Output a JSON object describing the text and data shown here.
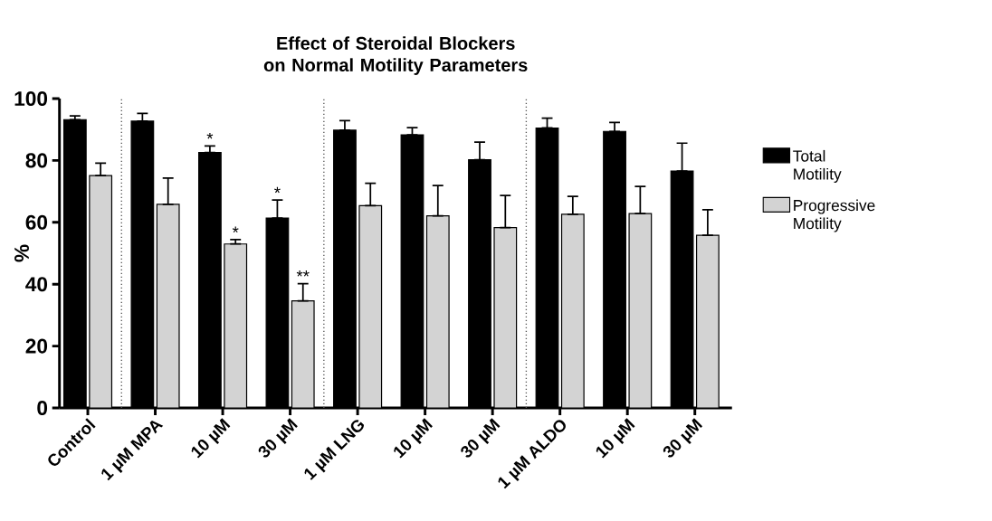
{
  "chart_data": {
    "type": "bar",
    "title": "Effect of Steroidal Blockers on Normal Motility Parameters",
    "ylabel": "%",
    "categories": [
      "Control",
      "1 µM MPA",
      "10 µM",
      "30 µM",
      "1 µM LNG",
      "10 µM",
      "30 µM",
      "1 µM ALDO",
      "10 µM",
      "30 µM"
    ],
    "series": [
      {
        "name": "Total Motility",
        "color": "#000000",
        "values": [
          93.2,
          92.7,
          82.6,
          61.4,
          89.8,
          88.3,
          80.2,
          90.5,
          89.4,
          76.6
        ],
        "errors": [
          [
            93.2,
            94.4
          ],
          [
            92.7,
            95.2
          ],
          [
            82.6,
            84.7
          ],
          [
            61.4,
            67.2
          ],
          [
            89.8,
            92.9
          ],
          [
            88.3,
            90.6
          ],
          [
            80.2,
            85.9
          ],
          [
            90.5,
            93.7
          ],
          [
            89.4,
            92.3
          ],
          [
            76.6,
            85.6
          ]
        ],
        "value_labels": [
          null,
          null,
          "*",
          "*",
          null,
          null,
          null,
          null,
          null,
          null
        ]
      },
      {
        "name": "Progressive Motility",
        "color": "#d3d3d3",
        "values": [
          75.1,
          65.8,
          53.0,
          34.6,
          65.4,
          62.1,
          58.3,
          62.6,
          62.8,
          55.8
        ],
        "errors": [
          [
            75.1,
            79.1
          ],
          [
            65.8,
            74.3
          ],
          [
            53.0,
            54.4
          ],
          [
            34.6,
            40.2
          ],
          [
            65.4,
            72.6
          ],
          [
            62.1,
            71.9
          ],
          [
            58.3,
            68.7
          ],
          [
            62.6,
            68.4
          ],
          [
            62.8,
            71.6
          ],
          [
            55.8,
            64.1
          ]
        ],
        "value_labels": [
          null,
          null,
          "*",
          "**",
          null,
          null,
          null,
          null,
          null,
          null
        ]
      }
    ],
    "ylim": [
      0,
      100
    ],
    "yticks": [
      0,
      20,
      40,
      60,
      80,
      100
    ],
    "legend": "right"
  }
}
